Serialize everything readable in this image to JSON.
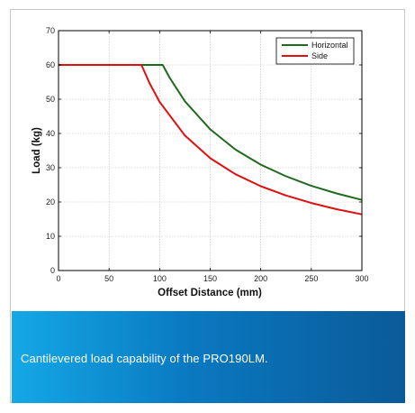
{
  "chart_data": {
    "type": "line",
    "title": "",
    "xlabel": "Offset Distance (mm)",
    "ylabel": "Load (kg)",
    "xlim": [
      0,
      300
    ],
    "ylim": [
      0,
      70
    ],
    "xticks": [
      0,
      50,
      100,
      150,
      200,
      250,
      300
    ],
    "yticks": [
      0,
      10,
      20,
      30,
      40,
      50,
      60,
      70
    ],
    "grid": true,
    "legend_position": "top-right",
    "series": [
      {
        "name": "Horizontal",
        "color": "#1e6b1e",
        "x": [
          0,
          103,
          110,
          125,
          150,
          175,
          200,
          225,
          250,
          275,
          300
        ],
        "y": [
          60,
          60,
          56.2,
          49.4,
          41.2,
          35.3,
          30.9,
          27.5,
          24.7,
          22.5,
          20.6
        ]
      },
      {
        "name": "Side",
        "color": "#e01010",
        "x": [
          0,
          82,
          90,
          100,
          125,
          150,
          175,
          200,
          225,
          250,
          275,
          300
        ],
        "y": [
          60,
          60,
          54.7,
          49.2,
          39.4,
          32.8,
          28.1,
          24.6,
          21.9,
          19.7,
          17.9,
          16.4
        ]
      }
    ]
  },
  "caption": {
    "text": "Cantilevered load capability of the PRO190LM."
  }
}
